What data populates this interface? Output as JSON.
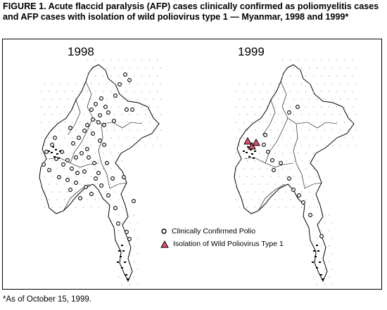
{
  "figure": {
    "title": "FIGURE 1. Acute flaccid paralysis (AFP) cases clinically confirmed as poliomyelitis cases and AFP cases with isolation of wild poliovirus type 1 — Myanmar, 1998 and 1999*",
    "footnote": "*As of October 15, 1999."
  },
  "maps": [
    {
      "year_label": "1998",
      "country": "Myanmar",
      "confirmed_cases_approx": 60,
      "wild_poliovirus_isolations": 0
    },
    {
      "year_label": "1999",
      "country": "Myanmar",
      "confirmed_cases_approx": 14,
      "wild_poliovirus_isolations": 3
    }
  ],
  "legend": {
    "confirmed_label": "Clinically Confirmed Polio",
    "wild_label": "Isolation of Wild Poliovirus Type 1"
  },
  "colors": {
    "triangle_fill": "#e0506e",
    "outline": "#000000",
    "dots": "#9a9a9a"
  },
  "symbols": {
    "confirmed": "open-circle",
    "wild": "filled-triangle"
  }
}
